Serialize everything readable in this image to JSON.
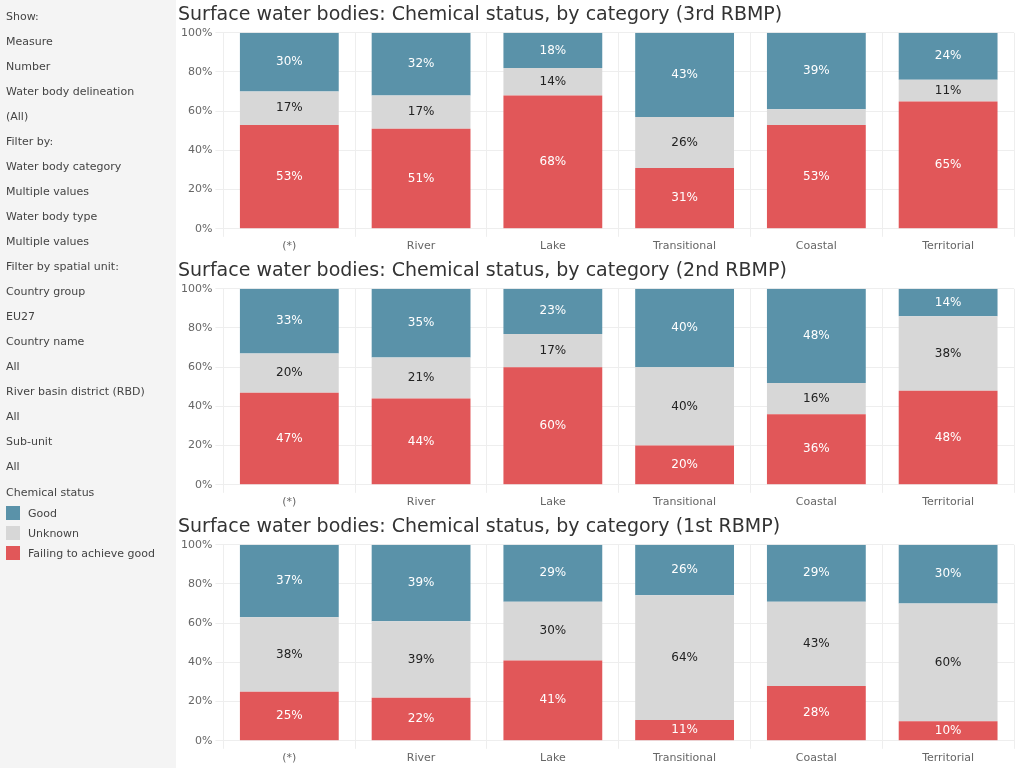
{
  "chart_data": [
    {
      "type": "other",
      "annotations": [
        "Show:",
        "Measure",
        "Number",
        "Water body delineation",
        "(All)",
        "Filter by:",
        "Water body category",
        "Multiple values",
        "Water body type",
        "Multiple values",
        "Filter by spatial unit:",
        "Country group",
        "EU27",
        "Country name",
        "All",
        "River basin district (RBD)",
        "All",
        "Sub-unit",
        "All"
      ]
    },
    {
      "type": "bar",
      "title": "Surface water bodies: Chemical status, by category (3rd RBMP)",
      "categories": [
        "(*)",
        "River",
        "Lake",
        "Transitional",
        "Coastal",
        "Territorial"
      ],
      "stacked": true,
      "ylim": [
        0,
        100
      ],
      "yticks": [
        {
          "value": 0,
          "label": "0%"
        },
        {
          "value": 20,
          "label": "20%"
        },
        {
          "value": 40,
          "label": "40%"
        },
        {
          "value": 60,
          "label": "60%"
        },
        {
          "value": 80,
          "label": "80%"
        },
        {
          "value": 100,
          "label": "100%"
        }
      ],
      "grid": true,
      "legend": "left",
      "legend_title": "Chemical status",
      "series": [
        {
          "name": "Failing to achieve good",
          "color": "#e15759",
          "values": [
            53,
            51,
            68,
            31,
            53,
            65
          ],
          "value_labels": [
            "53%",
            "51%",
            "68%",
            "31%",
            "53%",
            "65%"
          ]
        },
        {
          "name": "Unknown",
          "color": "#d7d7d7",
          "values": [
            17,
            17,
            14,
            26,
            8,
            11
          ],
          "value_labels": [
            "17%",
            "17%",
            "14%",
            "26%",
            null,
            "11%"
          ]
        },
        {
          "name": "Good",
          "color": "#5a92a9",
          "values": [
            30,
            32,
            18,
            43,
            39,
            24
          ],
          "value_labels": [
            "30%",
            "32%",
            "18%",
            "43%",
            "39%",
            "24%"
          ]
        }
      ]
    },
    {
      "type": "bar",
      "title": "Surface water bodies: Chemical status, by category (2nd RBMP)",
      "categories": [
        "(*)",
        "River",
        "Lake",
        "Transitional",
        "Coastal",
        "Territorial"
      ],
      "stacked": true,
      "ylim": [
        0,
        100
      ],
      "yticks": [
        {
          "value": 0,
          "label": "0%"
        },
        {
          "value": 20,
          "label": "20%"
        },
        {
          "value": 40,
          "label": "40%"
        },
        {
          "value": 60,
          "label": "60%"
        },
        {
          "value": 80,
          "label": "80%"
        },
        {
          "value": 100,
          "label": "100%"
        }
      ],
      "grid": true,
      "series": [
        {
          "color": "#e15759",
          "values": [
            47,
            44,
            60,
            20,
            36,
            48
          ],
          "value_labels": [
            "47%",
            "44%",
            "60%",
            "20%",
            "36%",
            "48%"
          ]
        },
        {
          "color": "#d7d7d7",
          "values": [
            20,
            21,
            17,
            40,
            16,
            38
          ],
          "value_labels": [
            "20%",
            "21%",
            "17%",
            "40%",
            "16%",
            "38%"
          ]
        },
        {
          "color": "#5a92a9",
          "values": [
            33,
            35,
            23,
            40,
            48,
            14
          ],
          "value_labels": [
            "33%",
            "35%",
            "23%",
            "40%",
            "48%",
            "14%"
          ]
        }
      ]
    },
    {
      "type": "bar",
      "title": "Surface water bodies: Chemical status, by category (1st RBMP)",
      "categories": [
        "(*)",
        "River",
        "Lake",
        "Transitional",
        "Coastal",
        "Territorial"
      ],
      "stacked": true,
      "ylim": [
        0,
        100
      ],
      "yticks": [
        {
          "value": 0,
          "label": "0%"
        },
        {
          "value": 20,
          "label": "20%"
        },
        {
          "value": 40,
          "label": "40%"
        },
        {
          "value": 60,
          "label": "60%"
        },
        {
          "value": 80,
          "label": "80%"
        },
        {
          "value": 100,
          "label": "100%"
        }
      ],
      "grid": true,
      "series": [
        {
          "color": "#e15759",
          "values": [
            25,
            22,
            41,
            10.6,
            28,
            10
          ],
          "value_labels": [
            "25%",
            "22%",
            "41%",
            "11%",
            "28%",
            "10%"
          ]
        },
        {
          "color": "#d7d7d7",
          "values": [
            38,
            39,
            30,
            63.6,
            43,
            60
          ],
          "value_labels": [
            "38%",
            "39%",
            "30%",
            "64%",
            "43%",
            "60%"
          ]
        },
        {
          "color": "#5a92a9",
          "values": [
            37,
            39,
            29,
            25.8,
            29,
            30
          ],
          "value_labels": [
            "37%",
            "39%",
            "29%",
            "26%",
            "29%",
            "30%"
          ]
        }
      ]
    }
  ]
}
